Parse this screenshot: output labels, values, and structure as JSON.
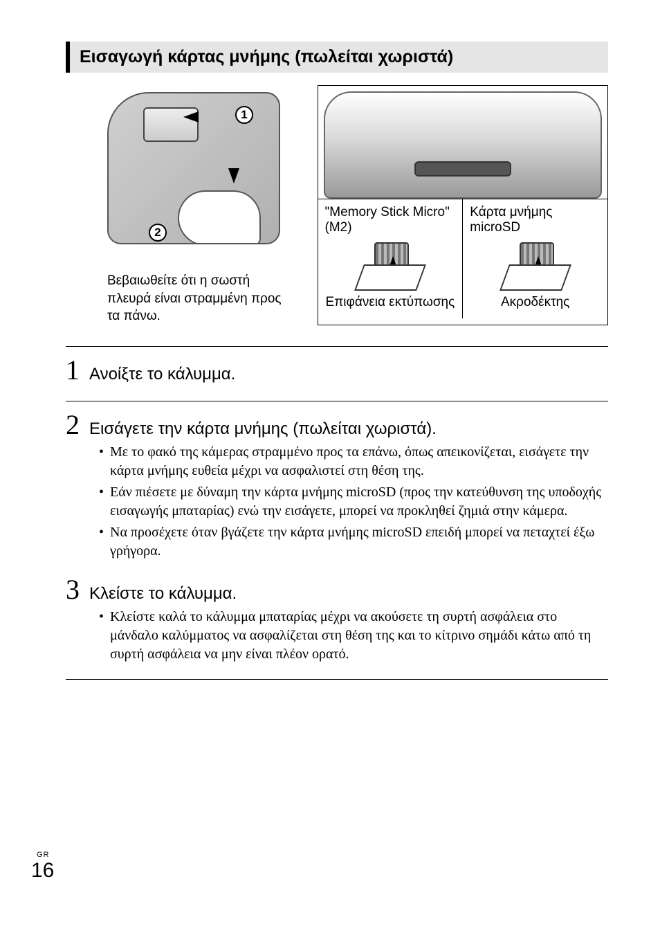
{
  "title": "Εισαγωγή κάρτας μνήμης (πωλείται χωριστά)",
  "diagram": {
    "marker1": "1",
    "marker2": "2",
    "caption": "Βεβαιωθείτε ότι η σωστή πλευρά είναι στραμμένη προς τα πάνω.",
    "card_a": {
      "name": "\"Memory Stick Micro\" (M2)",
      "bottom": "Επιφάνεια εκτύπωσης"
    },
    "card_b": {
      "name": "Κάρτα μνήμης microSD",
      "bottom": "Ακροδέκτης"
    }
  },
  "steps": {
    "s1": {
      "num": "1",
      "title": "Ανοίξτε το κάλυμμα."
    },
    "s2": {
      "num": "2",
      "title": "Εισάγετε την κάρτα μνήμης (πωλείται χωριστά).",
      "b1": "Με το φακό της κάμερας στραμμένο προς τα επάνω, όπως απεικονίζεται, εισάγετε την κάρτα μνήμης ευθεία μέχρι να ασφαλιστεί στη θέση της.",
      "b2": "Εάν πιέσετε με δύναμη την κάρτα μνήμης microSD (προς την κατεύθυνση της υποδοχής εισαγωγής μπαταρίας) ενώ την εισάγετε, μπορεί να προκληθεί ζημιά στην κάμερα.",
      "b3": "Να προσέχετε όταν βγάζετε την κάρτα μνήμης microSD επειδή μπορεί να πεταχτεί έξω γρήγορα."
    },
    "s3": {
      "num": "3",
      "title": "Κλείστε το κάλυμμα.",
      "b1": "Κλείστε καλά το κάλυμμα μπαταρίας μέχρι να ακούσετε τη συρτή ασφάλεια στο μάνδαλο καλύμματος να ασφαλίζεται στη θέση της και το κίτρινο σημάδι κάτω από τη συρτή ασφάλεια να μην είναι πλέον ορατό."
    }
  },
  "footer": {
    "lang": "GR",
    "page": "16"
  }
}
